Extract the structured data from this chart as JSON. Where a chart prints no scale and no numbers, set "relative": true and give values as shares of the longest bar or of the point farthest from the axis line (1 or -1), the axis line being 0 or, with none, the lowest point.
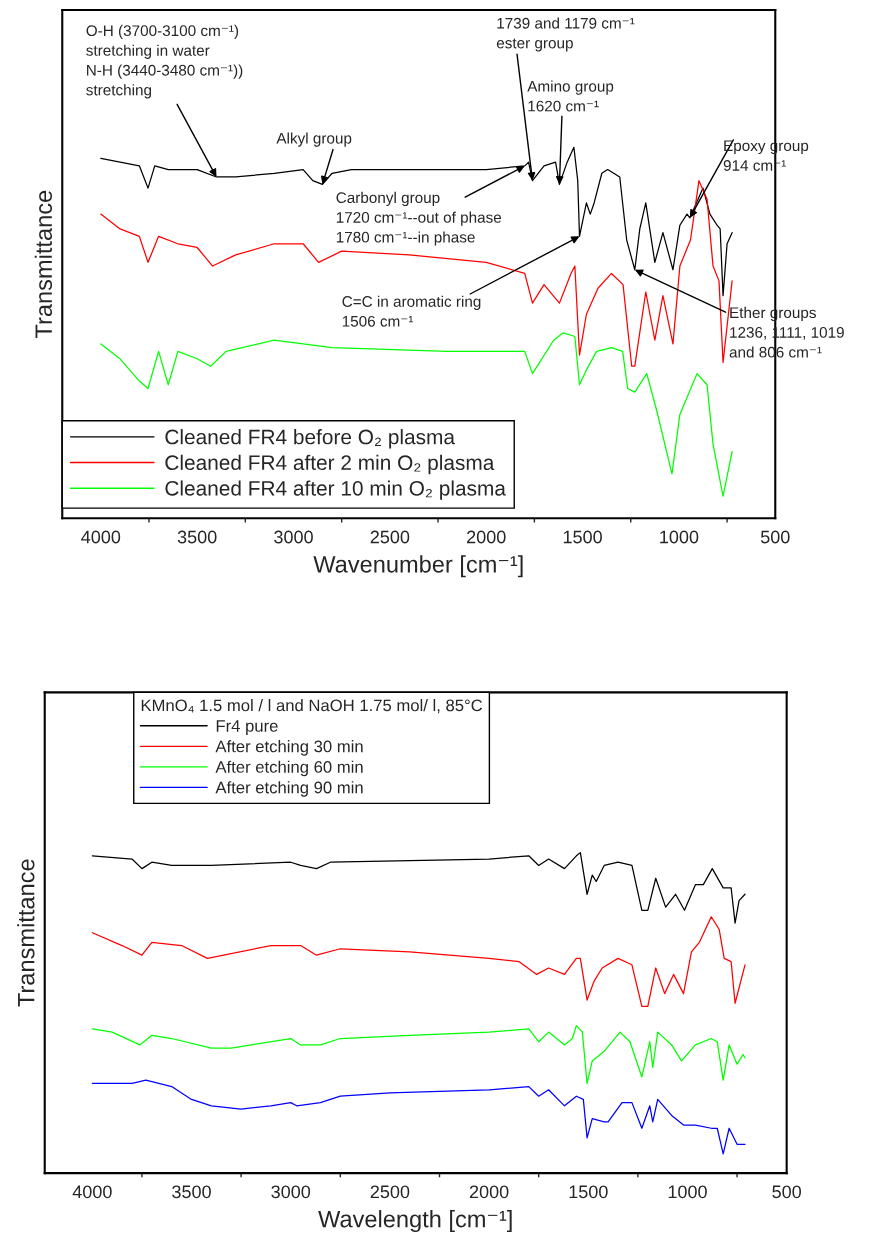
{
  "chart_data": [
    {
      "type": "line",
      "relative": true,
      "xlabel": "Wavenumber [cm⁻¹]",
      "ylabel": "Transmittance",
      "xlim": [
        4200,
        500
      ],
      "xticks": [
        4000,
        {
          "value": 3750,
          "label": null
        },
        3500,
        {
          "value": 3250,
          "label": null
        },
        3000,
        {
          "value": 2750,
          "label": null
        },
        2500,
        {
          "value": 2250,
          "label": null
        },
        2000,
        {
          "value": 1750,
          "label": null
        },
        1500,
        {
          "value": 1250,
          "label": null
        },
        1000,
        {
          "value": 750,
          "label": null
        },
        500
      ],
      "tick_labels": "x",
      "grid": false,
      "legend": "bottom left",
      "line_style": "solid",
      "marker": "none",
      "series": [
        {
          "name": "Cleaned FR4 before O₂ plasma",
          "color": "#000000",
          "x": [
            4000,
            3900,
            3800,
            3755,
            3720,
            3650,
            3500,
            3400,
            3300,
            3100,
            2950,
            2900,
            2850,
            2800,
            2700,
            2000,
            1800,
            1780,
            1760,
            1700,
            1640,
            1620,
            1580,
            1545,
            1525,
            1516,
            1480,
            1460,
            1440,
            1400,
            1370,
            1307,
            1271,
            1229,
            1203,
            1172,
            1125,
            1083,
            1031,
            995,
            958,
            943,
            875,
            839,
            802,
            786,
            771,
            750,
            724
          ],
          "values": [
            0.97,
            0.96,
            0.95,
            0.89,
            0.95,
            0.94,
            0.94,
            0.92,
            0.92,
            0.93,
            0.94,
            0.91,
            0.9,
            0.93,
            0.94,
            0.94,
            0.95,
            0.96,
            0.91,
            0.95,
            0.96,
            0.9,
            0.96,
            1,
            0.91,
            0.76,
            0.85,
            0.82,
            0.85,
            0.93,
            0.94,
            0.92,
            0.75,
            0.67,
            0.78,
            0.85,
            0.69,
            0.77,
            0.67,
            0.79,
            0.82,
            0.81,
            0.89,
            0.82,
            0.79,
            0.78,
            0.6,
            0.74,
            0.77
          ]
        },
        {
          "name": "Cleaned FR4 after 2 min O₂ plasma",
          "color": "#ff0000",
          "x": [
            4000,
            3900,
            3800,
            3755,
            3700,
            3600,
            3500,
            3420,
            3300,
            3100,
            2950,
            2870,
            2750,
            2400,
            2000,
            1800,
            1760,
            1700,
            1620,
            1560,
            1540,
            1516,
            1480,
            1420,
            1350,
            1290,
            1245,
            1229,
            1172,
            1125,
            1083,
            1031,
            995,
            940,
            896,
            854,
            823,
            792,
            771,
            724
          ],
          "values": [
            0.82,
            0.78,
            0.76,
            0.69,
            0.76,
            0.74,
            0.73,
            0.68,
            0.71,
            0.74,
            0.74,
            0.69,
            0.72,
            0.71,
            0.69,
            0.66,
            0.58,
            0.63,
            0.58,
            0.66,
            0.68,
            0.44,
            0.55,
            0.62,
            0.66,
            0.63,
            0.41,
            0.41,
            0.61,
            0.48,
            0.6,
            0.47,
            0.68,
            0.75,
            0.91,
            0.86,
            0.68,
            0.64,
            0.42,
            0.64
          ]
        },
        {
          "name": "Cleaned FR4 after 10 min O₂ plasma",
          "color": "#00ff00",
          "x": [
            4000,
            3900,
            3800,
            3755,
            3700,
            3650,
            3600,
            3500,
            3430,
            3350,
            3100,
            2950,
            2800,
            2200,
            1800,
            1760,
            1650,
            1600,
            1540,
            1516,
            1480,
            1427,
            1349,
            1292,
            1266,
            1229,
            1167,
            1115,
            1036,
            995,
            906,
            854,
            823,
            771,
            724
          ],
          "values": [
            0.47,
            0.43,
            0.37,
            0.35,
            0.45,
            0.36,
            0.45,
            0.43,
            0.41,
            0.45,
            0.48,
            0.47,
            0.46,
            0.45,
            0.45,
            0.39,
            0.48,
            0.5,
            0.49,
            0.36,
            0.4,
            0.45,
            0.46,
            0.45,
            0.35,
            0.34,
            0.39,
            0.29,
            0.12,
            0.28,
            0.39,
            0.36,
            0.2,
            0.06,
            0.18
          ]
        }
      ],
      "annotations": [
        {
          "text": "O-H (3700-3100 cm⁻¹)\nstretching in water\nN-H (3440-3480 cm⁻¹))\nstretching",
          "x": 3400,
          "y": 0.92
        },
        {
          "text": "Alkyl group",
          "x": 2850,
          "y": 0.9
        },
        {
          "text": "1739 and 1179 cm⁻¹\nester group",
          "x": 1760,
          "y": 0.91
        },
        {
          "text": "Amino group\n1620 cm⁻¹",
          "x": 1620,
          "y": 0.9
        },
        {
          "text": "Carbonyl group\n1720 cm⁻¹--out of phase\n1780 cm⁻¹--in phase",
          "x": 1800,
          "y": 0.95
        },
        {
          "text": "C=C in aromatic ring\n1506 cm⁻¹",
          "x": 1516,
          "y": 0.76
        },
        {
          "text": "Epoxy group\n914 cm⁻¹",
          "x": 943,
          "y": 0.81
        },
        {
          "text": "Ether groups\n1236, 1111, 1019\nand 806 cm⁻¹",
          "x": 1229,
          "y": 0.67
        }
      ]
    },
    {
      "type": "line",
      "relative": true,
      "xlabel": "Wavelength [cm⁻¹]",
      "ylabel": "Transmittance",
      "xlim": [
        4240,
        500
      ],
      "xticks": [
        4000,
        {
          "value": 3750,
          "label": null
        },
        3500,
        {
          "value": 3250,
          "label": null
        },
        3000,
        {
          "value": 2750,
          "label": null
        },
        2500,
        {
          "value": 2250,
          "label": null
        },
        2000,
        {
          "value": 1750,
          "label": null
        },
        1500,
        {
          "value": 1250,
          "label": null
        },
        1000,
        {
          "value": 750,
          "label": null
        },
        500
      ],
      "tick_labels": "x",
      "grid": false,
      "legend": "top left",
      "line_style": "solid",
      "marker": "none",
      "legend_title": "KMnO₄ 1.5 mol / l and NaOH 1.75 mol/ l, 85°C",
      "series": [
        {
          "name": "Fr4 pure",
          "color": "#000000",
          "x": [
            4000,
            3800,
            3750,
            3700,
            3600,
            3400,
            3000,
            2950,
            2870,
            2800,
            2000,
            1800,
            1750,
            1700,
            1620,
            1560,
            1540,
            1506,
            1480,
            1460,
            1420,
            1350,
            1280,
            1230,
            1200,
            1160,
            1110,
            1060,
            1015,
            960,
            920,
            875,
            820,
            780,
            760,
            740,
            710
          ],
          "values": [
            0.99,
            0.98,
            0.95,
            0.97,
            0.96,
            0.96,
            0.97,
            0.96,
            0.95,
            0.97,
            0.98,
            0.99,
            0.96,
            0.98,
            0.95,
            0.99,
            1,
            0.87,
            0.93,
            0.91,
            0.96,
            0.97,
            0.96,
            0.82,
            0.82,
            0.92,
            0.83,
            0.87,
            0.82,
            0.9,
            0.9,
            0.95,
            0.89,
            0.89,
            0.78,
            0.85,
            0.87
          ]
        },
        {
          "name": "After etching 30 min",
          "color": "#ff0000",
          "x": [
            4000,
            3850,
            3750,
            3700,
            3550,
            3420,
            3100,
            2950,
            2870,
            2750,
            2400,
            2000,
            1850,
            1760,
            1700,
            1620,
            1560,
            1540,
            1506,
            1470,
            1430,
            1350,
            1280,
            1230,
            1200,
            1160,
            1115,
            1070,
            1020,
            980,
            940,
            880,
            840,
            815,
            780,
            760,
            710
          ],
          "values": [
            0.75,
            0.71,
            0.68,
            0.72,
            0.71,
            0.67,
            0.71,
            0.71,
            0.68,
            0.7,
            0.69,
            0.67,
            0.66,
            0.62,
            0.64,
            0.62,
            0.67,
            0.67,
            0.54,
            0.6,
            0.64,
            0.67,
            0.65,
            0.52,
            0.52,
            0.64,
            0.56,
            0.62,
            0.56,
            0.69,
            0.72,
            0.8,
            0.76,
            0.67,
            0.66,
            0.53,
            0.65
          ]
        },
        {
          "name": "After etching 60 min",
          "color": "#00ff00",
          "x": [
            4000,
            3900,
            3760,
            3700,
            3600,
            3400,
            3300,
            3000,
            2950,
            2850,
            2750,
            2400,
            2000,
            1800,
            1750,
            1700,
            1620,
            1580,
            1560,
            1530,
            1506,
            1480,
            1420,
            1340,
            1290,
            1230,
            1190,
            1175,
            1150,
            1080,
            1030,
            960,
            880,
            850,
            820,
            790,
            750,
            720,
            710
          ],
          "values": [
            0.45,
            0.44,
            0.4,
            0.43,
            0.42,
            0.39,
            0.39,
            0.42,
            0.4,
            0.4,
            0.42,
            0.43,
            0.44,
            0.45,
            0.41,
            0.44,
            0.4,
            0.42,
            0.46,
            0.44,
            0.28,
            0.35,
            0.38,
            0.44,
            0.41,
            0.3,
            0.41,
            0.33,
            0.44,
            0.4,
            0.35,
            0.4,
            0.42,
            0.41,
            0.29,
            0.4,
            0.34,
            0.37,
            0.36
          ]
        },
        {
          "name": "After etching 90 min",
          "color": "#0000ff",
          "x": [
            4000,
            3800,
            3730,
            3600,
            3500,
            3400,
            3250,
            3100,
            3000,
            2970,
            2850,
            2750,
            2500,
            2000,
            1800,
            1750,
            1700,
            1620,
            1560,
            1525,
            1506,
            1480,
            1420,
            1400,
            1330,
            1280,
            1230,
            1190,
            1175,
            1150,
            1080,
            1020,
            960,
            880,
            850,
            820,
            790,
            750,
            710
          ],
          "values": [
            0.28,
            0.28,
            0.29,
            0.27,
            0.23,
            0.21,
            0.2,
            0.21,
            0.22,
            0.21,
            0.22,
            0.24,
            0.25,
            0.26,
            0.27,
            0.24,
            0.26,
            0.21,
            0.24,
            0.23,
            0.11,
            0.17,
            0.16,
            0.16,
            0.22,
            0.22,
            0.14,
            0.21,
            0.16,
            0.23,
            0.18,
            0.15,
            0.15,
            0.14,
            0.14,
            0.06,
            0.14,
            0.09,
            0.09
          ]
        }
      ]
    }
  ]
}
